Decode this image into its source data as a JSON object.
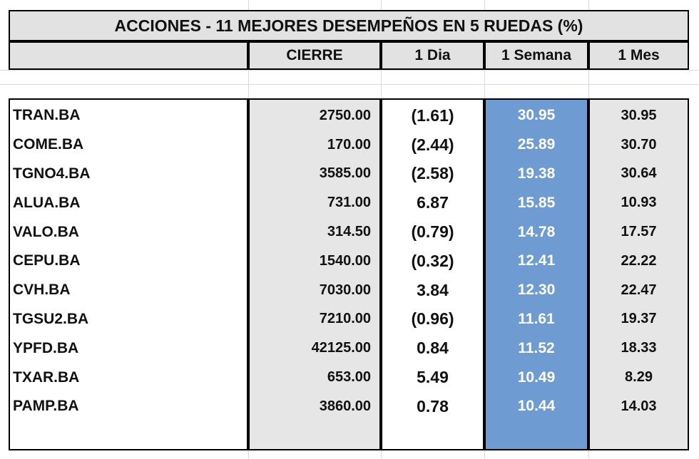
{
  "table": {
    "title": "ACCIONES   - 11  MEJORES DESEMPEÑOS EN 5 RUEDAS (%)",
    "headers": {
      "name": "",
      "cierre": "CIERRE",
      "dia": "1 Dia",
      "semana": "1 Semana",
      "mes": "1 Mes"
    },
    "rows": [
      {
        "ticker": "TRAN.BA",
        "cierre": "2750.00",
        "dia": "(1.61)",
        "semana": "30.95",
        "mes": "30.95"
      },
      {
        "ticker": "COME.BA",
        "cierre": "170.00",
        "dia": "(2.44)",
        "semana": "25.89",
        "mes": "30.70"
      },
      {
        "ticker": "TGNO4.BA",
        "cierre": "3585.00",
        "dia": "(2.58)",
        "semana": "19.38",
        "mes": "30.64"
      },
      {
        "ticker": "ALUA.BA",
        "cierre": "731.00",
        "dia": "6.87",
        "semana": "15.85",
        "mes": "10.93"
      },
      {
        "ticker": "VALO.BA",
        "cierre": "314.50",
        "dia": "(0.79)",
        "semana": "14.78",
        "mes": "17.57"
      },
      {
        "ticker": "CEPU.BA",
        "cierre": "1540.00",
        "dia": "(0.32)",
        "semana": "12.41",
        "mes": "22.22"
      },
      {
        "ticker": "CVH.BA",
        "cierre": "7030.00",
        "dia": "3.84",
        "semana": "12.30",
        "mes": "22.47"
      },
      {
        "ticker": "TGSU2.BA",
        "cierre": "7210.00",
        "dia": "(0.96)",
        "semana": "11.61",
        "mes": "19.37"
      },
      {
        "ticker": "YPFD.BA",
        "cierre": "42125.00",
        "dia": "0.84",
        "semana": "11.52",
        "mes": "18.33"
      },
      {
        "ticker": "TXAR.BA",
        "cierre": "653.00",
        "dia": "5.49",
        "semana": "10.49",
        "mes": "8.29"
      },
      {
        "ticker": "PAMP.BA",
        "cierre": "3860.00",
        "dia": "0.78",
        "semana": "10.44",
        "mes": "14.03"
      }
    ]
  },
  "colors": {
    "header_bg": "#e2e2e2",
    "highlight_column": "#6d9bd2",
    "gray_column": "#e6e6e6",
    "border": "#000000"
  }
}
